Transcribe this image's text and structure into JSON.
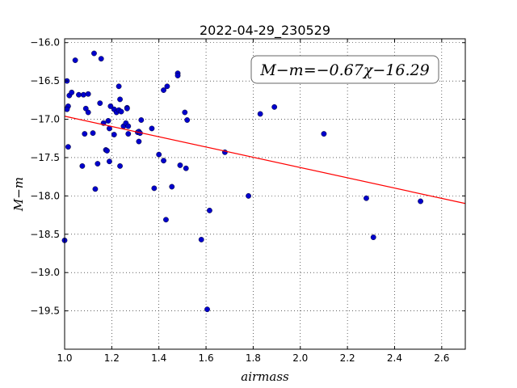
{
  "chart_data": {
    "type": "scatter",
    "title": "2022-04-29_230529",
    "xlabel": "airmass",
    "ylabel": "M−m",
    "xlim": [
      1.0,
      2.7
    ],
    "ylim": [
      -20.0,
      -15.95
    ],
    "y_inverted": false,
    "grid": true,
    "xticks": [
      1.0,
      1.2,
      1.4,
      1.6,
      1.8,
      2.0,
      2.2,
      2.4,
      2.6
    ],
    "xtick_labels": [
      "1.0",
      "1.2",
      "1.4",
      "1.6",
      "1.8",
      "2.0",
      "2.2",
      "2.4",
      "2.6"
    ],
    "yticks": [
      -16.0,
      -16.5,
      -17.0,
      -17.5,
      -18.0,
      -18.5,
      -19.0,
      -19.5
    ],
    "ytick_labels": [
      "−16.0",
      "−16.5",
      "−17.0",
      "−17.5",
      "−18.0",
      "−18.5",
      "−19.0",
      "−19.5"
    ],
    "annotation": "M−m=−0.67χ−16.29",
    "annotation_position": "top-right",
    "fit": {
      "slope": -0.67,
      "intercept": -16.29,
      "color": "#ff0000"
    },
    "point_color": "#0000cc",
    "points": [
      [
        1.0,
        -18.58
      ],
      [
        1.01,
        -16.5
      ],
      [
        1.01,
        -16.86
      ],
      [
        1.015,
        -16.83
      ],
      [
        1.01,
        -16.87
      ],
      [
        1.015,
        -17.36
      ],
      [
        1.02,
        -16.69
      ],
      [
        1.03,
        -16.65
      ],
      [
        1.045,
        -16.23
      ],
      [
        1.06,
        -16.68
      ],
      [
        1.08,
        -16.68
      ],
      [
        1.1,
        -16.67
      ],
      [
        1.09,
        -16.86
      ],
      [
        1.1,
        -16.91
      ],
      [
        1.085,
        -17.19
      ],
      [
        1.075,
        -17.61
      ],
      [
        1.12,
        -17.18
      ],
      [
        1.125,
        -16.14
      ],
      [
        1.13,
        -17.91
      ],
      [
        1.14,
        -17.58
      ],
      [
        1.155,
        -16.21
      ],
      [
        1.15,
        -16.79
      ],
      [
        1.165,
        -17.05
      ],
      [
        1.175,
        -17.4
      ],
      [
        1.18,
        -17.41
      ],
      [
        1.185,
        -17.02
      ],
      [
        1.19,
        -17.12
      ],
      [
        1.19,
        -17.55
      ],
      [
        1.195,
        -16.83
      ],
      [
        1.21,
        -17.2
      ],
      [
        1.21,
        -16.87
      ],
      [
        1.22,
        -16.91
      ],
      [
        1.23,
        -16.57
      ],
      [
        1.23,
        -16.88
      ],
      [
        1.235,
        -16.74
      ],
      [
        1.235,
        -17.61
      ],
      [
        1.24,
        -16.9
      ],
      [
        1.25,
        -17.09
      ],
      [
        1.26,
        -17.05
      ],
      [
        1.265,
        -16.85
      ],
      [
        1.265,
        -16.86
      ],
      [
        1.27,
        -17.09
      ],
      [
        1.27,
        -17.19
      ],
      [
        1.31,
        -17.17
      ],
      [
        1.315,
        -17.16
      ],
      [
        1.32,
        -17.18
      ],
      [
        1.315,
        -17.29
      ],
      [
        1.325,
        -17.01
      ],
      [
        1.37,
        -17.12
      ],
      [
        1.38,
        -17.9
      ],
      [
        1.4,
        -17.46
      ],
      [
        1.42,
        -17.54
      ],
      [
        1.42,
        -16.62
      ],
      [
        1.435,
        -16.57
      ],
      [
        1.43,
        -18.31
      ],
      [
        1.455,
        -17.88
      ],
      [
        1.48,
        -16.4
      ],
      [
        1.48,
        -16.43
      ],
      [
        1.49,
        -17.6
      ],
      [
        1.51,
        -16.91
      ],
      [
        1.515,
        -17.64
      ],
      [
        1.52,
        -17.01
      ],
      [
        1.58,
        -18.57
      ],
      [
        1.605,
        -19.48
      ],
      [
        1.615,
        -18.19
      ],
      [
        1.68,
        -17.43
      ],
      [
        1.78,
        -18.0
      ],
      [
        1.83,
        -16.93
      ],
      [
        1.89,
        -16.84
      ],
      [
        2.1,
        -17.19
      ],
      [
        2.28,
        -18.03
      ],
      [
        2.31,
        -18.54
      ],
      [
        2.51,
        -18.07
      ]
    ]
  }
}
